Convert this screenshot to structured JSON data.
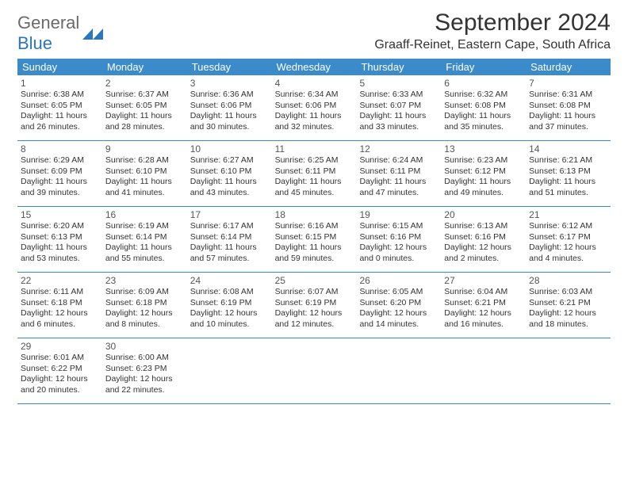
{
  "logo": {
    "text1": "General",
    "text2": "Blue",
    "mark_color": "#2a77bb"
  },
  "title": "September 2024",
  "location": "Graaff-Reinet, Eastern Cape, South Africa",
  "colors": {
    "header_bg": "#3b8bca",
    "header_text": "#ffffff",
    "week_border": "#3b8bca",
    "body_text": "#333333",
    "daynum_text": "#555555",
    "background": "#ffffff"
  },
  "weekdays": [
    "Sunday",
    "Monday",
    "Tuesday",
    "Wednesday",
    "Thursday",
    "Friday",
    "Saturday"
  ],
  "weeks": [
    [
      {
        "n": "1",
        "sunrise": "6:38 AM",
        "sunset": "6:05 PM",
        "daylight": "11 hours and 26 minutes."
      },
      {
        "n": "2",
        "sunrise": "6:37 AM",
        "sunset": "6:05 PM",
        "daylight": "11 hours and 28 minutes."
      },
      {
        "n": "3",
        "sunrise": "6:36 AM",
        "sunset": "6:06 PM",
        "daylight": "11 hours and 30 minutes."
      },
      {
        "n": "4",
        "sunrise": "6:34 AM",
        "sunset": "6:06 PM",
        "daylight": "11 hours and 32 minutes."
      },
      {
        "n": "5",
        "sunrise": "6:33 AM",
        "sunset": "6:07 PM",
        "daylight": "11 hours and 33 minutes."
      },
      {
        "n": "6",
        "sunrise": "6:32 AM",
        "sunset": "6:08 PM",
        "daylight": "11 hours and 35 minutes."
      },
      {
        "n": "7",
        "sunrise": "6:31 AM",
        "sunset": "6:08 PM",
        "daylight": "11 hours and 37 minutes."
      }
    ],
    [
      {
        "n": "8",
        "sunrise": "6:29 AM",
        "sunset": "6:09 PM",
        "daylight": "11 hours and 39 minutes."
      },
      {
        "n": "9",
        "sunrise": "6:28 AM",
        "sunset": "6:10 PM",
        "daylight": "11 hours and 41 minutes."
      },
      {
        "n": "10",
        "sunrise": "6:27 AM",
        "sunset": "6:10 PM",
        "daylight": "11 hours and 43 minutes."
      },
      {
        "n": "11",
        "sunrise": "6:25 AM",
        "sunset": "6:11 PM",
        "daylight": "11 hours and 45 minutes."
      },
      {
        "n": "12",
        "sunrise": "6:24 AM",
        "sunset": "6:11 PM",
        "daylight": "11 hours and 47 minutes."
      },
      {
        "n": "13",
        "sunrise": "6:23 AM",
        "sunset": "6:12 PM",
        "daylight": "11 hours and 49 minutes."
      },
      {
        "n": "14",
        "sunrise": "6:21 AM",
        "sunset": "6:13 PM",
        "daylight": "11 hours and 51 minutes."
      }
    ],
    [
      {
        "n": "15",
        "sunrise": "6:20 AM",
        "sunset": "6:13 PM",
        "daylight": "11 hours and 53 minutes."
      },
      {
        "n": "16",
        "sunrise": "6:19 AM",
        "sunset": "6:14 PM",
        "daylight": "11 hours and 55 minutes."
      },
      {
        "n": "17",
        "sunrise": "6:17 AM",
        "sunset": "6:14 PM",
        "daylight": "11 hours and 57 minutes."
      },
      {
        "n": "18",
        "sunrise": "6:16 AM",
        "sunset": "6:15 PM",
        "daylight": "11 hours and 59 minutes."
      },
      {
        "n": "19",
        "sunrise": "6:15 AM",
        "sunset": "6:16 PM",
        "daylight": "12 hours and 0 minutes."
      },
      {
        "n": "20",
        "sunrise": "6:13 AM",
        "sunset": "6:16 PM",
        "daylight": "12 hours and 2 minutes."
      },
      {
        "n": "21",
        "sunrise": "6:12 AM",
        "sunset": "6:17 PM",
        "daylight": "12 hours and 4 minutes."
      }
    ],
    [
      {
        "n": "22",
        "sunrise": "6:11 AM",
        "sunset": "6:18 PM",
        "daylight": "12 hours and 6 minutes."
      },
      {
        "n": "23",
        "sunrise": "6:09 AM",
        "sunset": "6:18 PM",
        "daylight": "12 hours and 8 minutes."
      },
      {
        "n": "24",
        "sunrise": "6:08 AM",
        "sunset": "6:19 PM",
        "daylight": "12 hours and 10 minutes."
      },
      {
        "n": "25",
        "sunrise": "6:07 AM",
        "sunset": "6:19 PM",
        "daylight": "12 hours and 12 minutes."
      },
      {
        "n": "26",
        "sunrise": "6:05 AM",
        "sunset": "6:20 PM",
        "daylight": "12 hours and 14 minutes."
      },
      {
        "n": "27",
        "sunrise": "6:04 AM",
        "sunset": "6:21 PM",
        "daylight": "12 hours and 16 minutes."
      },
      {
        "n": "28",
        "sunrise": "6:03 AM",
        "sunset": "6:21 PM",
        "daylight": "12 hours and 18 minutes."
      }
    ],
    [
      {
        "n": "29",
        "sunrise": "6:01 AM",
        "sunset": "6:22 PM",
        "daylight": "12 hours and 20 minutes."
      },
      {
        "n": "30",
        "sunrise": "6:00 AM",
        "sunset": "6:23 PM",
        "daylight": "12 hours and 22 minutes."
      },
      null,
      null,
      null,
      null,
      null
    ]
  ],
  "labels": {
    "sunrise": "Sunrise:",
    "sunset": "Sunset:",
    "daylight": "Daylight:"
  }
}
